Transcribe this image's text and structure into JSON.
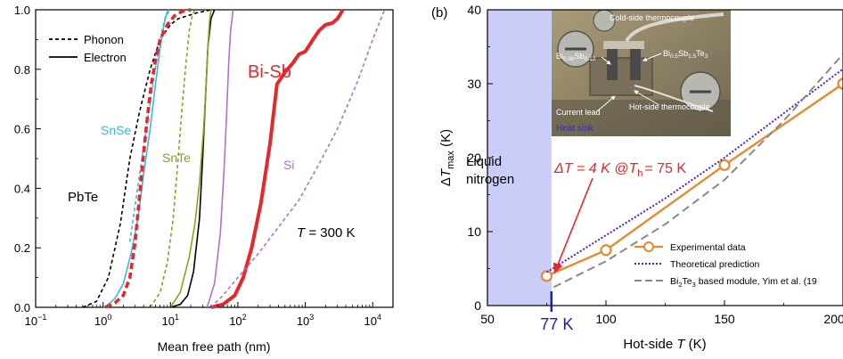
{
  "chart_data": [
    {
      "type": "line",
      "panel_label": "",
      "xlabel": "Mean free path (nm)",
      "ylabel": "",
      "xscale": "log",
      "xlim": [
        0.1,
        20000
      ],
      "ylim": [
        0,
        1.0
      ],
      "x_ticks": [
        0.1,
        1,
        10,
        100,
        1000,
        10000
      ],
      "x_tick_labels": [
        {
          "base": "10",
          "exp": "−1"
        },
        {
          "base": "10",
          "exp": "0"
        },
        {
          "base": "10",
          "exp": "1"
        },
        {
          "base": "10",
          "exp": "2"
        },
        {
          "base": "10",
          "exp": "3"
        },
        {
          "base": "10",
          "exp": "4"
        }
      ],
      "y_ticks": [
        0,
        0.2,
        0.4,
        0.6,
        0.8,
        1.0
      ],
      "y_tick_labels": [
        "0.0",
        "0.2",
        "0.4",
        "0.6",
        "0.8",
        "1.0"
      ],
      "grid": false,
      "legend": {
        "position": "top-left",
        "entries": [
          {
            "label": "Phonon",
            "style": "dashed"
          },
          {
            "label": "Electron",
            "style": "solid"
          }
        ]
      },
      "annotations": [
        {
          "text": "SnSe",
          "color": "#3fb6e6"
        },
        {
          "text": "SnTe",
          "color": "#9a9a1e"
        },
        {
          "text": "PbTe",
          "color": "#000000"
        },
        {
          "text": "Bi-Sb",
          "color": "#e8262c"
        },
        {
          "text": "Si",
          "color": "#b070d0"
        },
        {
          "text_parts": [
            "T",
            " = 300 K"
          ],
          "color": "#000000"
        }
      ],
      "series": [
        {
          "name": "PbTe",
          "color": "#000000",
          "style": "dashed",
          "x": [
            0.5,
            0.8,
            1.2,
            1.8,
            2.5,
            3.5,
            5,
            7,
            10,
            13,
            18,
            25,
            40
          ],
          "y": [
            0,
            0.02,
            0.1,
            0.28,
            0.5,
            0.66,
            0.8,
            0.9,
            0.95,
            0.97,
            0.98,
            0.99,
            1.0
          ]
        },
        {
          "name": "PbTe",
          "color": "#000000",
          "style": "solid",
          "x": [
            10,
            14,
            18,
            22,
            27,
            30,
            33,
            36,
            40,
            45
          ],
          "y": [
            0,
            0.01,
            0.04,
            0.12,
            0.3,
            0.5,
            0.7,
            0.88,
            0.97,
            1.0
          ]
        },
        {
          "name": "SnSe",
          "color": "#3fb6e6",
          "style": "dashed",
          "x": [
            2.5,
            3.5,
            4.5,
            5.5,
            6.5,
            7.5,
            8.5,
            10
          ],
          "y": [
            0.22,
            0.45,
            0.62,
            0.75,
            0.86,
            0.93,
            0.98,
            1.0
          ]
        },
        {
          "name": "SnSe",
          "color": "#3fb6e6",
          "style": "solid",
          "x": [
            1.0,
            1.2,
            1.5,
            2.0,
            2.6,
            3.3,
            4,
            5,
            6,
            7,
            8,
            8.8,
            9.5
          ],
          "y": [
            0,
            0.01,
            0.03,
            0.08,
            0.18,
            0.3,
            0.45,
            0.6,
            0.75,
            0.87,
            0.95,
            0.99,
            1.0
          ]
        },
        {
          "name": "SnTe",
          "color": "#9a9a1e",
          "style": "dashed",
          "x": [
            5,
            7,
            9,
            11,
            13,
            15,
            17,
            19,
            21,
            23
          ],
          "y": [
            0,
            0.05,
            0.15,
            0.3,
            0.5,
            0.68,
            0.82,
            0.93,
            0.98,
            1.0
          ]
        },
        {
          "name": "SnTe",
          "color": "#9a9a1e",
          "style": "solid",
          "x": [
            10,
            14,
            19,
            23,
            27,
            31,
            34,
            36,
            38,
            40
          ],
          "y": [
            0.0,
            0.05,
            0.17,
            0.28,
            0.42,
            0.6,
            0.76,
            0.88,
            0.96,
            1.0
          ]
        },
        {
          "name": "Bi-Sb",
          "color": "#e8262c",
          "style": "dashed",
          "x": [
            1.1,
            1.5,
            2.0,
            2.5,
            3.0,
            3.5,
            4.0,
            4.6,
            5.2,
            6.0,
            7.0,
            9.0,
            11.5,
            15,
            20
          ],
          "y": [
            0,
            0.015,
            0.04,
            0.1,
            0.22,
            0.38,
            0.52,
            0.65,
            0.75,
            0.83,
            0.9,
            0.95,
            0.98,
            0.995,
            1.0
          ]
        },
        {
          "name": "Bi-Sb",
          "color": "#e8262c",
          "style": "solid",
          "x": [
            40,
            60,
            90,
            120,
            160,
            220,
            300,
            380,
            500,
            650,
            800,
            1000,
            1300,
            1600,
            2000,
            2500,
            3000,
            3300,
            3600
          ],
          "y": [
            0,
            0.01,
            0.04,
            0.1,
            0.2,
            0.35,
            0.55,
            0.75,
            0.79,
            0.82,
            0.85,
            0.86,
            0.9,
            0.93,
            0.95,
            0.955,
            0.97,
            0.985,
            1.0
          ]
        },
        {
          "name": "Si",
          "color": "#b070d0",
          "style": "solid",
          "x": [
            35,
            45,
            55,
            62,
            68,
            73,
            78,
            85
          ],
          "y": [
            0,
            0.08,
            0.25,
            0.45,
            0.65,
            0.82,
            0.93,
            1.0
          ]
        },
        {
          "name": "Si",
          "color": "#b070d0",
          "style": "dashed",
          "x": [
            40,
            60,
            100,
            200,
            400,
            800,
            1500,
            3000,
            6000,
            10000,
            15000
          ],
          "y": [
            0,
            0.04,
            0.1,
            0.18,
            0.27,
            0.36,
            0.47,
            0.6,
            0.76,
            0.9,
            1.0
          ]
        }
      ]
    },
    {
      "type": "line",
      "panel_label": "(b)",
      "xlabel_parts": [
        "Hot-side ",
        "T",
        " (K)"
      ],
      "ylabel_parts": [
        "Δ",
        "T",
        "max",
        " (K)"
      ],
      "xlim": [
        50,
        200
      ],
      "ylim": [
        0,
        40
      ],
      "x_ticks": [
        50,
        100,
        150,
        200
      ],
      "x_tick_labels": [
        "50",
        "100",
        "150",
        "200"
      ],
      "y_ticks": [
        0,
        10,
        20,
        30,
        40
      ],
      "y_tick_labels": [
        "0",
        "10",
        "20",
        "30",
        "40"
      ],
      "grid": false,
      "shaded_region": {
        "x": [
          50,
          77
        ],
        "label_lines": [
          "Liquid",
          "nitrogen"
        ],
        "color": "#c9cdf7"
      },
      "marker_line": {
        "x": 77,
        "label": "77 K",
        "color": "#1a1ad0"
      },
      "callout": {
        "parts": [
          "ΔT = 4 K @",
          "T",
          "h",
          "= 75 K"
        ],
        "color": "#e8262c",
        "points_to": {
          "x": 77,
          "y": 4
        }
      },
      "inset_labels": [
        "Cold-side thermocouple",
        "Bi0.88Sb0.12",
        "Bi0.5Sb1.5Te3",
        "Current lead",
        "Hot-side thermocouple",
        "Heat sink"
      ],
      "legend": {
        "position": "bottom-right",
        "entries": [
          {
            "label": "Experimental data",
            "style": "solid-circle",
            "color": "#e8892c"
          },
          {
            "label": "Theoretical prediction",
            "style": "dotted",
            "color": "#5a1ad0"
          },
          {
            "label_parts": [
              "Bi",
              "2",
              "Te",
              "3",
              " based module, Yim et al. (19"
            ],
            "style": "dashed",
            "color": "#888888"
          }
        ]
      },
      "series": [
        {
          "name": "Experimental data",
          "color": "#e8892c",
          "style": "solid-circle",
          "x": [
            75,
            100,
            150,
            200
          ],
          "y": [
            4,
            7.5,
            19,
            30
          ]
        },
        {
          "name": "Theoretical prediction",
          "color": "#5a1ad0",
          "style": "dotted",
          "x": [
            75,
            100,
            125,
            150,
            175,
            200
          ],
          "y": [
            4.5,
            9.5,
            14.5,
            20,
            26,
            32
          ]
        },
        {
          "name": "Bi2Te3 based module, Yim et al. (19",
          "color": "#888888",
          "style": "dashed",
          "x": [
            78,
            100,
            125,
            150,
            175,
            200
          ],
          "y": [
            2.5,
            6,
            11,
            17,
            25,
            34
          ]
        }
      ]
    }
  ]
}
